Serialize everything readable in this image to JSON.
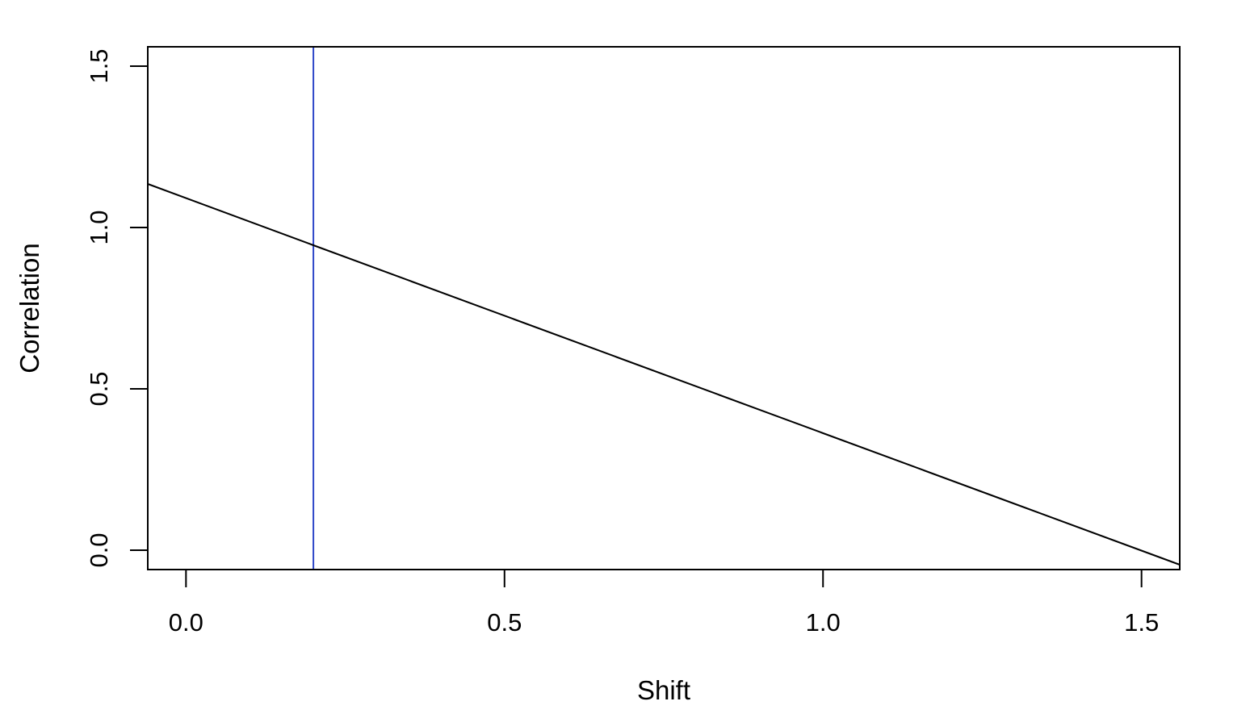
{
  "chart_data": {
    "type": "line",
    "title": "",
    "xlabel": "Shift",
    "ylabel": "Correlation",
    "xlim": [
      -0.06,
      1.56
    ],
    "ylim": [
      -0.06,
      1.56
    ],
    "x_ticks": [
      0.0,
      0.5,
      1.0,
      1.5
    ],
    "x_tick_labels": [
      "0.0",
      "0.5",
      "1.0",
      "1.5"
    ],
    "y_ticks": [
      0.0,
      0.5,
      1.0,
      1.5
    ],
    "y_tick_labels": [
      "0.0",
      "0.5",
      "1.0",
      "1.5"
    ],
    "grid": false,
    "legend": "none",
    "series": [
      {
        "x": [
          -0.06,
          0.2,
          1.56
        ],
        "y": [
          1.135,
          0.945,
          -0.045
        ],
        "color": "#000000"
      }
    ],
    "reference_lines": [
      {
        "orientation": "vertical",
        "x": 0.2,
        "color": "#2b45c8"
      }
    ]
  }
}
